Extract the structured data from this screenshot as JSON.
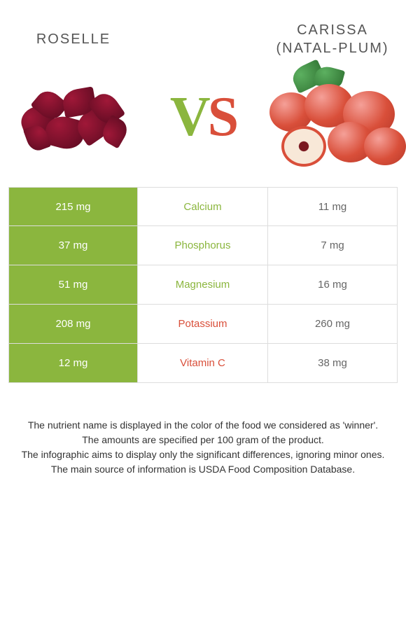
{
  "header": {
    "left_title": "Roselle",
    "right_title": "Carissa (natal-plum)",
    "vs_v": "V",
    "vs_s": "S"
  },
  "colors": {
    "green": "#8bb63e",
    "red": "#d94f3a",
    "row_border": "#dddddd",
    "text": "#333333"
  },
  "comparison": {
    "type": "table",
    "columns": [
      "left_value",
      "nutrient",
      "right_value"
    ],
    "rows": [
      {
        "left": "215 mg",
        "nutrient": "Calcium",
        "right": "11 mg",
        "winner": "left"
      },
      {
        "left": "37 mg",
        "nutrient": "Phosphorus",
        "right": "7 mg",
        "winner": "left"
      },
      {
        "left": "51 mg",
        "nutrient": "Magnesium",
        "right": "16 mg",
        "winner": "left"
      },
      {
        "left": "208 mg",
        "nutrient": "Potassium",
        "right": "260 mg",
        "winner": "right"
      },
      {
        "left": "12 mg",
        "nutrient": "Vitamin C",
        "right": "38 mg",
        "winner": "right"
      }
    ]
  },
  "notes": {
    "line1": "The nutrient name is displayed in the color of the food we considered as 'winner'.",
    "line2": "The amounts are specified per 100 gram of the product.",
    "line3": "The infographic aims to display only the significant differences, ignoring minor ones.",
    "line4": "The main source of information is USDA Food Composition Database."
  }
}
